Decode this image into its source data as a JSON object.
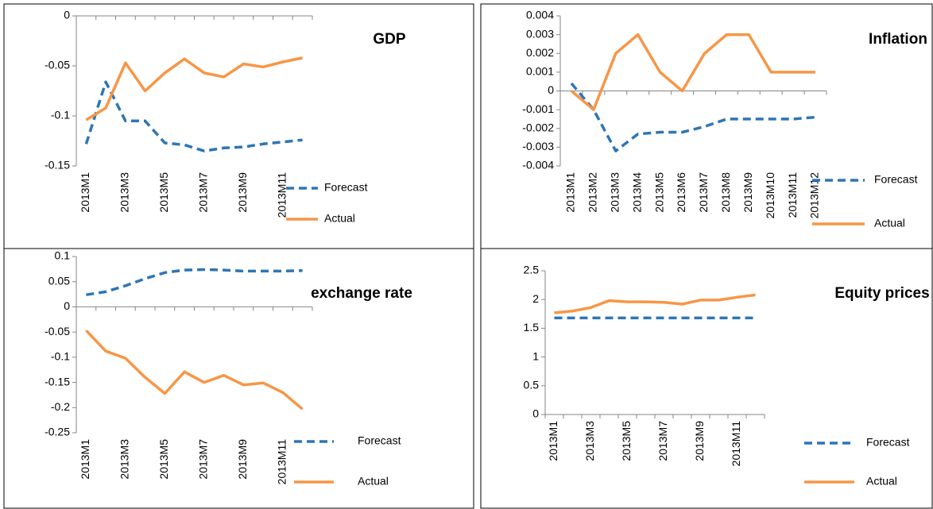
{
  "chart_data": [
    {
      "type": "line",
      "title": "GDP",
      "categories": [
        "2013M1",
        null,
        "2013M3",
        null,
        "2013M5",
        null,
        "2013M7",
        null,
        "2013M9",
        null,
        "2013M11",
        null
      ],
      "series": [
        {
          "name": "Forecast",
          "color": "#2e75b6",
          "dash": true,
          "values": [
            -0.128,
            -0.066,
            -0.105,
            -0.105,
            -0.127,
            -0.129,
            -0.135,
            -0.132,
            -0.131,
            -0.128,
            -0.126,
            -0.124
          ]
        },
        {
          "name": "Actual",
          "color": "#f79646",
          "dash": false,
          "values": [
            -0.104,
            -0.092,
            -0.047,
            -0.075,
            -0.057,
            -0.043,
            -0.057,
            -0.061,
            -0.048,
            -0.051,
            -0.046,
            -0.042
          ]
        }
      ],
      "ylim": [
        -0.15,
        0
      ],
      "yticks": [
        0,
        -0.05,
        -0.1,
        -0.15
      ]
    },
    {
      "type": "line",
      "title": "Inflation",
      "categories": [
        "2013M1",
        "2013M2",
        "2013M3",
        "2013M4",
        "2013M5",
        "2013M6",
        "2013M7",
        "2013M8",
        "2013M9",
        "2013M10",
        "2013M11",
        "2013M12"
      ],
      "series": [
        {
          "name": "Forecast",
          "color": "#2e75b6",
          "dash": true,
          "values": [
            0.0004,
            -0.001,
            -0.0032,
            -0.0023,
            -0.0022,
            -0.0022,
            -0.0019,
            -0.0015,
            -0.0015,
            -0.0015,
            -0.0015,
            -0.0014
          ]
        },
        {
          "name": "Actual",
          "color": "#f79646",
          "dash": false,
          "values": [
            0,
            -0.001,
            0.002,
            0.003,
            0.001,
            0,
            0.002,
            0.003,
            0.003,
            0.001,
            0.001,
            0.001
          ]
        }
      ],
      "ylim": [
        -0.004,
        0.004
      ],
      "yticks": [
        0.004,
        0.003,
        0.002,
        0.001,
        0,
        -0.001,
        -0.002,
        -0.003,
        -0.004
      ]
    },
    {
      "type": "line",
      "title": "exchange rate",
      "categories": [
        "2013M1",
        null,
        "2013M3",
        null,
        "2013M5",
        null,
        "2013M7",
        null,
        "2013M9",
        null,
        "2013M11",
        null
      ],
      "series": [
        {
          "name": "Forecast",
          "color": "#2e75b6",
          "dash": true,
          "values": [
            0.024,
            0.03,
            0.042,
            0.056,
            0.068,
            0.073,
            0.074,
            0.073,
            0.071,
            0.071,
            0.071,
            0.072
          ]
        },
        {
          "name": "Actual",
          "color": "#f79646",
          "dash": false,
          "values": [
            -0.047,
            -0.088,
            -0.102,
            -0.14,
            -0.172,
            -0.129,
            -0.15,
            -0.136,
            -0.155,
            -0.151,
            -0.17,
            -0.203
          ]
        }
      ],
      "ylim": [
        -0.25,
        0.1
      ],
      "yticks": [
        0.1,
        0.05,
        0,
        -0.05,
        -0.1,
        -0.15,
        -0.2,
        -0.25
      ]
    },
    {
      "type": "line",
      "title": "Equity prices",
      "categories": [
        "2013M1",
        null,
        "2013M3",
        null,
        "2013M5",
        null,
        "2013M7",
        null,
        "2013M9",
        null,
        "2013M11",
        null
      ],
      "series": [
        {
          "name": "Forecast",
          "color": "#2e75b6",
          "dash": true,
          "values": [
            1.68,
            1.68,
            1.68,
            1.68,
            1.68,
            1.68,
            1.68,
            1.68,
            1.68,
            1.68,
            1.68,
            1.68
          ]
        },
        {
          "name": "Actual",
          "color": "#f79646",
          "dash": false,
          "values": [
            1.77,
            1.8,
            1.86,
            1.98,
            1.96,
            1.96,
            1.95,
            1.92,
            1.99,
            1.99,
            2.04,
            2.08
          ]
        }
      ],
      "ylim": [
        0,
        2.5
      ],
      "yticks": [
        2.5,
        2,
        1.5,
        1,
        0.5,
        0
      ]
    }
  ]
}
